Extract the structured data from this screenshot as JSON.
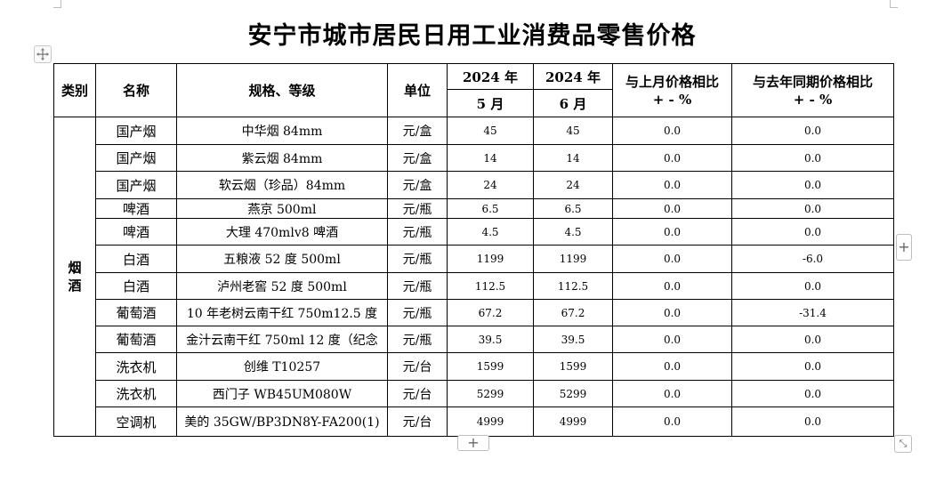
{
  "title": "安宁市城市居民日用工业消费品零售价格",
  "headers": {
    "category": "类别",
    "name": "名称",
    "spec": "规格、等级",
    "unit": "单位",
    "col1_year": "2024 年",
    "col1_month": "5 月",
    "col2_year": "2024 年",
    "col2_month": "6 月",
    "mom_line1": "与上月价格相比",
    "mom_line2": "+ - %",
    "yoy_line1": "与去年同期价格相比",
    "yoy_line2": "+ - %"
  },
  "category": "烟酒",
  "rows": [
    {
      "name": "国产烟",
      "spec": "中华烟 84mm",
      "unit": "元/盒",
      "may": "45",
      "jun": "45",
      "mom": "0.0",
      "yoy": "0.0"
    },
    {
      "name": "国产烟",
      "spec": "紫云烟 84mm",
      "unit": "元/盒",
      "may": "14",
      "jun": "14",
      "mom": "0.0",
      "yoy": "0.0"
    },
    {
      "name": "国产烟",
      "spec": "软云烟（珍品）84mm",
      "unit": "元/盒",
      "may": "24",
      "jun": "24",
      "mom": "0.0",
      "yoy": "0.0"
    },
    {
      "name": "啤酒",
      "spec": "燕京 500ml",
      "unit": "元/瓶",
      "may": "6.5",
      "jun": "6.5",
      "mom": "0.0",
      "yoy": "0.0"
    },
    {
      "name": "啤酒",
      "spec": "大理 470mlv8 啤酒",
      "unit": "元/瓶",
      "may": "4.5",
      "jun": "4.5",
      "mom": "0.0",
      "yoy": "0.0"
    },
    {
      "name": "白酒",
      "spec": "五粮液 52 度 500ml",
      "unit": "元/瓶",
      "may": "1199",
      "jun": "1199",
      "mom": "0.0",
      "yoy": "-6.0"
    },
    {
      "name": "白酒",
      "spec": "泸州老窖 52 度 500ml",
      "unit": "元/瓶",
      "may": "112.5",
      "jun": "112.5",
      "mom": "0.0",
      "yoy": "0.0"
    },
    {
      "name": "葡萄酒",
      "spec": "10 年老树云南干红 750m12.5 度",
      "unit": "元/瓶",
      "may": "67.2",
      "jun": "67.2",
      "mom": "0.0",
      "yoy": "-31.4"
    },
    {
      "name": "葡萄酒",
      "spec": "金汁云南干红 750ml 12 度（纪念",
      "unit": "元/瓶",
      "may": "39.5",
      "jun": "39.5",
      "mom": "0.0",
      "yoy": "0.0"
    },
    {
      "name": "洗衣机",
      "spec": "创维 T10257",
      "unit": "元/台",
      "may": "1599",
      "jun": "1599",
      "mom": "0.0",
      "yoy": "0.0"
    },
    {
      "name": "洗衣机",
      "spec": "西门子 WB45UM080W",
      "unit": "元/台",
      "may": "5299",
      "jun": "5299",
      "mom": "0.0",
      "yoy": "0.0"
    },
    {
      "name": "空调机",
      "spec": "美的 35GW/BP3DN8Y-FA200(1)",
      "unit": "元/台",
      "may": "4999",
      "jun": "4999",
      "mom": "0.0",
      "yoy": "0.0"
    }
  ],
  "controls": {
    "add_column": "+",
    "add_row": "+"
  }
}
